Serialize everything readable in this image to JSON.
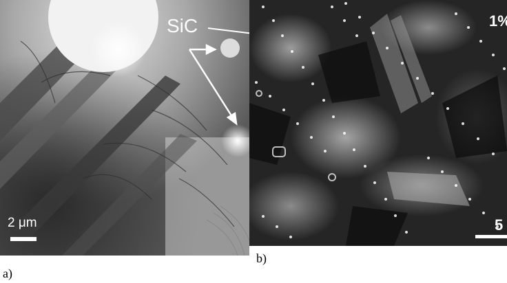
{
  "panel_a": {
    "caption": "a)",
    "material_label": "SiC",
    "scale_bar_label": "2 μm"
  },
  "panel_b": {
    "caption": "b)",
    "label_partial": "1%",
    "scale_bar_label_partial": "5"
  },
  "colors": {
    "annotation": "#ffffff",
    "caption_text": "#000000"
  }
}
